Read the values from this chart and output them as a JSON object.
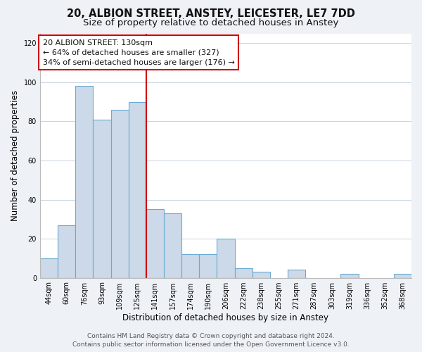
{
  "title": "20, ALBION STREET, ANSTEY, LEICESTER, LE7 7DD",
  "subtitle": "Size of property relative to detached houses in Anstey",
  "xlabel": "Distribution of detached houses by size in Anstey",
  "ylabel": "Number of detached properties",
  "bar_labels": [
    "44sqm",
    "60sqm",
    "76sqm",
    "93sqm",
    "109sqm",
    "125sqm",
    "141sqm",
    "157sqm",
    "174sqm",
    "190sqm",
    "206sqm",
    "222sqm",
    "238sqm",
    "255sqm",
    "271sqm",
    "287sqm",
    "303sqm",
    "319sqm",
    "336sqm",
    "352sqm",
    "368sqm"
  ],
  "bar_values": [
    10,
    27,
    98,
    81,
    86,
    90,
    35,
    33,
    12,
    12,
    20,
    5,
    3,
    0,
    4,
    0,
    0,
    2,
    0,
    0,
    2
  ],
  "bar_color": "#ccd9e8",
  "bar_edge_color": "#6aaad4",
  "vline_x": 6.0,
  "vline_color": "#cc0000",
  "annotation_line1": "20 ALBION STREET: 130sqm",
  "annotation_line2": "← 64% of detached houses are smaller (327)",
  "annotation_line3": "34% of semi-detached houses are larger (176) →",
  "ylim": [
    0,
    125
  ],
  "yticks": [
    0,
    20,
    40,
    60,
    80,
    100,
    120
  ],
  "footer_line1": "Contains HM Land Registry data © Crown copyright and database right 2024.",
  "footer_line2": "Contains public sector information licensed under the Open Government Licence v3.0.",
  "bg_color": "#eef2f7",
  "plot_bg_color": "#ffffff",
  "title_fontsize": 10.5,
  "subtitle_fontsize": 9.5,
  "axis_label_fontsize": 8.5,
  "tick_fontsize": 7,
  "annot_fontsize": 8,
  "footer_fontsize": 6.5
}
